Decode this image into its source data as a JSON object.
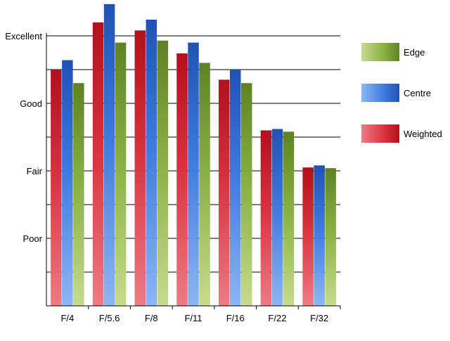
{
  "chart_data": {
    "type": "bar",
    "title": "",
    "xlabel": "",
    "ylabel": "",
    "categories": [
      "F/4",
      "F/5.6",
      "F/8",
      "F/11",
      "F/16",
      "F/22",
      "F/32"
    ],
    "y_tick_labels": [
      "Poor",
      "Fair",
      "Good",
      "Excellent"
    ],
    "y_tick_values": [
      1,
      2,
      3,
      4
    ],
    "ylim": [
      0,
      4
    ],
    "grid": true,
    "legend_position": "right",
    "series": [
      {
        "name": "Weighted",
        "values": [
          3.5,
          4.2,
          4.08,
          3.74,
          3.35,
          2.6,
          2.05
        ],
        "color": "#c8101e"
      },
      {
        "name": "Centre",
        "values": [
          3.64,
          4.47,
          4.24,
          3.9,
          3.5,
          2.62,
          2.08
        ],
        "color": "#2a62c8"
      },
      {
        "name": "Edge",
        "values": [
          3.3,
          3.9,
          3.93,
          3.6,
          3.3,
          2.58,
          2.04
        ],
        "color": "#6e9328"
      }
    ],
    "legend_order": [
      "Edge",
      "Centre",
      "Weighted"
    ]
  }
}
